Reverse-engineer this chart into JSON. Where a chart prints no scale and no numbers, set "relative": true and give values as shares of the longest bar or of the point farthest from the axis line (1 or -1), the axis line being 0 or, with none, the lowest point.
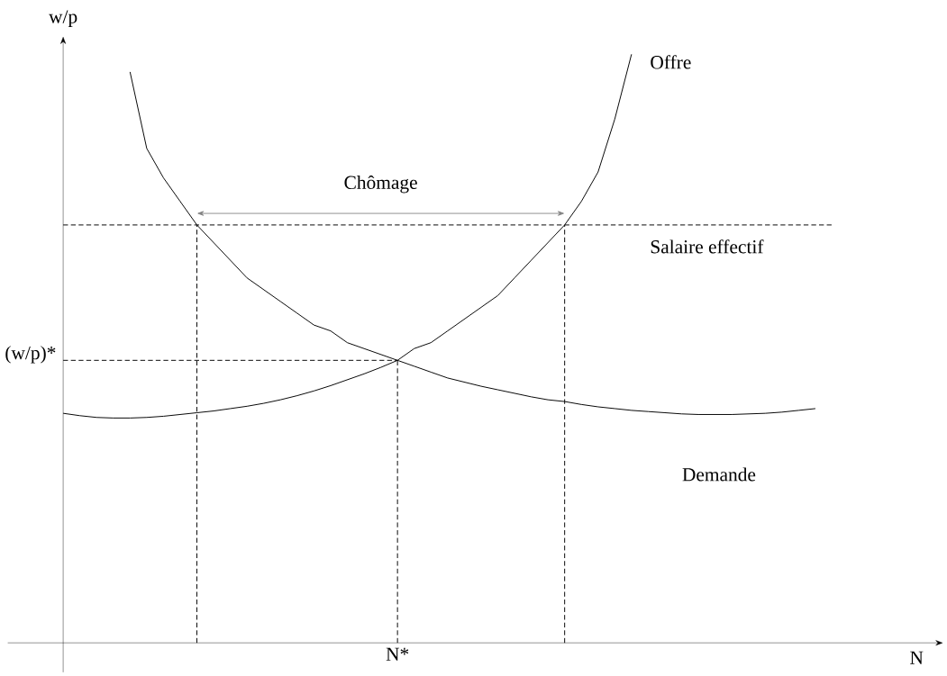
{
  "chart_data": {
    "type": "line",
    "relative": true,
    "xlabel": "N",
    "ylabel": "w/p",
    "marker": "none",
    "categories": [
      null,
      null,
      null,
      null,
      null,
      null,
      null,
      null,
      null,
      null,
      null,
      null,
      null,
      null,
      null,
      null,
      null,
      null,
      null,
      null,
      null,
      null,
      null,
      null,
      null,
      null,
      null,
      null,
      null,
      null,
      null,
      null,
      null,
      null,
      null,
      null,
      null,
      null,
      null,
      null,
      null,
      null,
      null,
      null,
      null,
      null,
      null
    ],
    "series": [
      {
        "name": "Demande",
        "color": "#000000",
        "line_style": "solid",
        "values": [
          null,
          null,
          null,
          null,
          0.97,
          0.84,
          0.79,
          0.75,
          0.71,
          0.68,
          0.65,
          0.62,
          0.6,
          0.58,
          0.56,
          0.54,
          0.53,
          0.51,
          0.5,
          0.49,
          0.48,
          0.47,
          0.46,
          0.45,
          0.443,
          0.436,
          0.43,
          0.424,
          0.418,
          0.413,
          0.41,
          0.405,
          0.401,
          0.398,
          0.395,
          0.393,
          0.391,
          0.389,
          0.388,
          0.388,
          0.388,
          0.389,
          0.39,
          0.392,
          0.395,
          0.398,
          null
        ]
      },
      {
        "name": "Offre",
        "color": "#000000",
        "line_style": "solid",
        "values": [
          0.39,
          0.386,
          0.383,
          0.382,
          0.382,
          0.383,
          0.385,
          0.388,
          0.391,
          0.394,
          0.398,
          0.402,
          0.407,
          0.413,
          0.42,
          0.428,
          0.437,
          0.447,
          0.457,
          0.468,
          0.48,
          0.5,
          0.51,
          0.53,
          0.55,
          0.57,
          0.59,
          0.62,
          0.65,
          0.68,
          0.71,
          0.75,
          0.8,
          0.89,
          1.0,
          null,
          null,
          null,
          null,
          null,
          null,
          null,
          null,
          null,
          null,
          null,
          null
        ]
      },
      {
        "name": "Salaire effectif",
        "color": "#000000",
        "line_style": "dashed",
        "values": [
          0.71,
          0.71,
          0.71,
          0.71,
          0.71,
          0.71,
          0.71,
          0.71,
          0.71,
          0.71,
          0.71,
          0.71,
          0.71,
          0.71,
          0.71,
          0.71,
          0.71,
          0.71,
          0.71,
          0.71,
          0.71,
          0.71,
          0.71,
          0.71,
          0.71,
          0.71,
          0.71,
          0.71,
          0.71,
          0.71,
          0.71,
          0.71,
          0.71,
          0.71,
          0.71,
          0.71,
          0.71,
          0.71,
          0.71,
          0.71,
          0.71,
          0.71,
          0.71,
          0.71,
          0.71,
          0.71,
          0.71
        ]
      },
      {
        "name": "(w/p)*",
        "color": "#000000",
        "line_style": "dashed",
        "values": [
          0.48,
          0.48,
          0.48,
          0.48,
          0.48,
          0.48,
          0.48,
          0.48,
          0.48,
          0.48,
          0.48,
          0.48,
          0.48,
          0.48,
          0.48,
          0.48,
          0.48,
          0.48,
          0.48,
          0.48,
          0.48,
          null,
          null,
          null,
          null,
          null,
          null,
          null,
          null,
          null,
          null,
          null,
          null,
          null,
          null,
          null,
          null,
          null,
          null,
          null,
          null,
          null,
          null,
          null,
          null,
          null,
          null
        ]
      }
    ],
    "annotations": [
      "Chômage",
      "N*"
    ]
  }
}
